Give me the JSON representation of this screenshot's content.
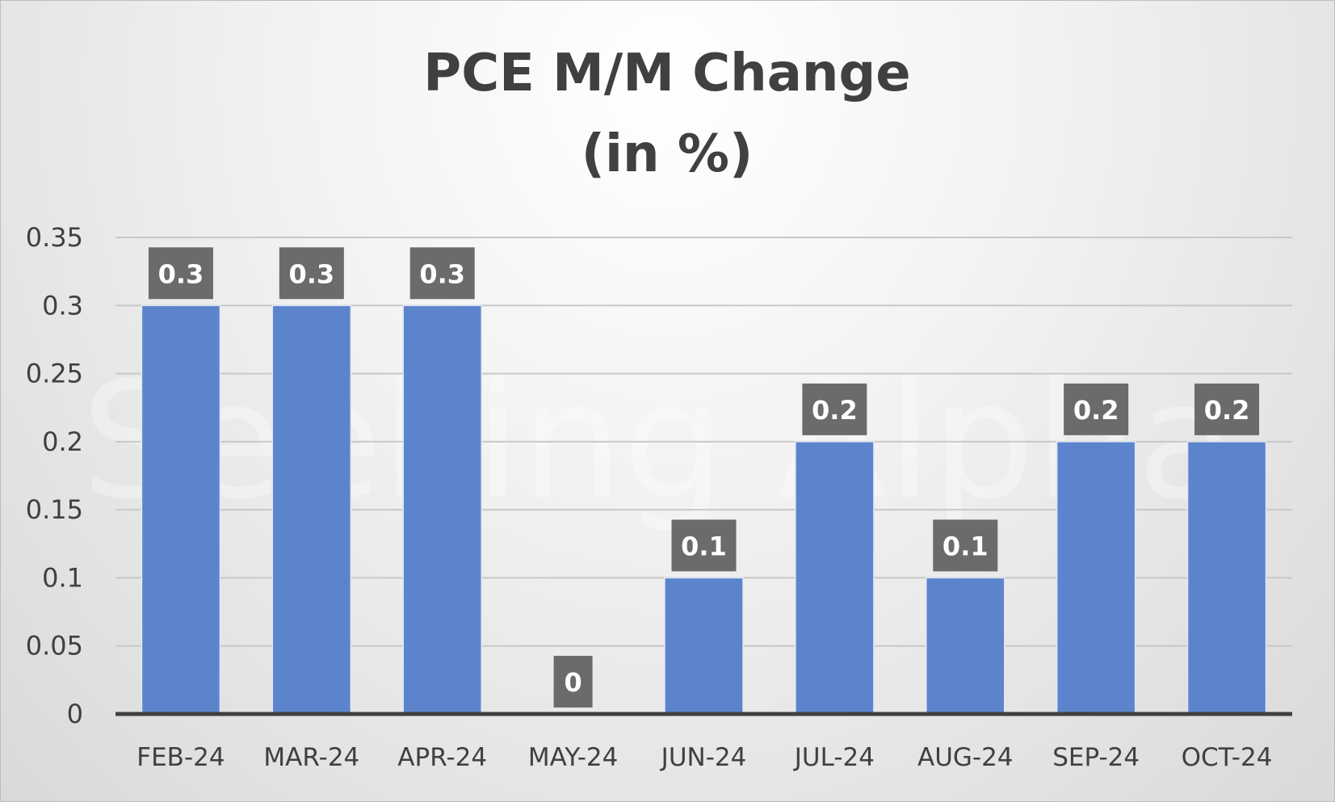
{
  "watermark": "Seeking Alpha",
  "colors": {
    "bar": "#5b84cc",
    "label_bg": "#6b6b6b",
    "grid": "#c8c8c8",
    "axis": "#404040",
    "text": "#404040"
  },
  "chart_data": {
    "type": "bar",
    "title": [
      "PCE M/M Change",
      "(in %)"
    ],
    "xlabel": "",
    "ylabel": "",
    "categories": [
      "FEB-24",
      "MAR-24",
      "APR-24",
      "MAY-24",
      "JUN-24",
      "JUL-24",
      "AUG-24",
      "SEP-24",
      "OCT-24"
    ],
    "values": [
      0.3,
      0.3,
      0.3,
      0,
      0.1,
      0.2,
      0.1,
      0.2,
      0.2
    ],
    "ylim": [
      0,
      0.35
    ],
    "yticks": [
      0,
      0.05,
      0.1,
      0.15,
      0.2,
      0.25,
      0.3,
      0.35
    ],
    "grid": true,
    "data_labels": true,
    "legend": "none"
  }
}
